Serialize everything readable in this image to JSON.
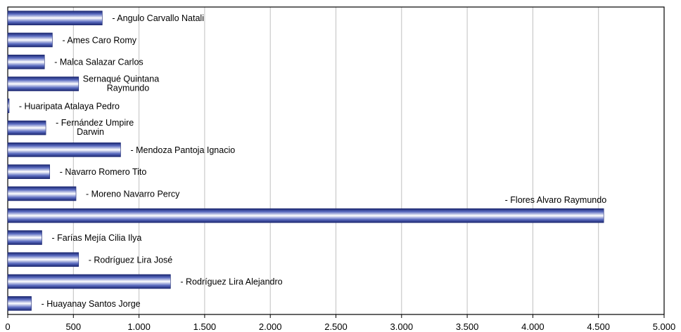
{
  "chart_data": {
    "type": "bar",
    "orientation": "horizontal",
    "xlim": [
      0,
      5000
    ],
    "x_ticks": [
      0,
      500,
      1000,
      1500,
      2000,
      2500,
      3000,
      3500,
      4000,
      4500,
      5000
    ],
    "x_tick_labels": [
      "0",
      "500",
      "1.000",
      "1.500",
      "2.000",
      "2.500",
      "3.000",
      "3.500",
      "4.000",
      "4.500",
      "5.000"
    ],
    "grid": "vertical",
    "legend": "none",
    "bar_color": "#2a3a8c",
    "categories": [
      "- Angulo Carvallo Natali",
      "- Ames Caro Romy",
      "- Malca Salazar Carlos",
      "- Sernaqué Quintana Raymundo",
      "- Huaripata Atalaya Pedro",
      "- Fernández Umpire Darwin",
      "- Mendoza Pantoja Ignacio",
      "- Navarro Romero Tito",
      "- Moreno Navarro Percy",
      "- Flores  Alvaro Raymundo",
      "- Farías Mejía Cilia Ilya",
      "- Rodríguez Lira José",
      "- Rodríguez Lira Alejandro",
      "- Huayanay Santos Jorge"
    ],
    "label_lines": [
      [
        "- Angulo Carvallo Natali"
      ],
      [
        "- Ames Caro Romy"
      ],
      [
        "- Malca Salazar Carlos"
      ],
      [
        "Sernaqué Quintana",
        "Raymundo"
      ],
      [
        "- Huaripata Atalaya Pedro"
      ],
      [
        "- Fernández Umpire",
        "Darwin"
      ],
      [
        "- Mendoza Pantoja Ignacio"
      ],
      [
        "- Navarro Romero Tito"
      ],
      [
        "- Moreno Navarro Percy"
      ],
      [
        "- Flores  Alvaro Raymundo"
      ],
      [
        "- Farías Mejía Cilia Ilya"
      ],
      [
        "- Rodríguez Lira José"
      ],
      [
        "- Rodríguez Lira Alejandro"
      ],
      [
        "- Huayanay Santos Jorge"
      ]
    ],
    "values": [
      720,
      340,
      280,
      540,
      10,
      290,
      860,
      320,
      520,
      4540,
      260,
      540,
      1240,
      180
    ]
  }
}
